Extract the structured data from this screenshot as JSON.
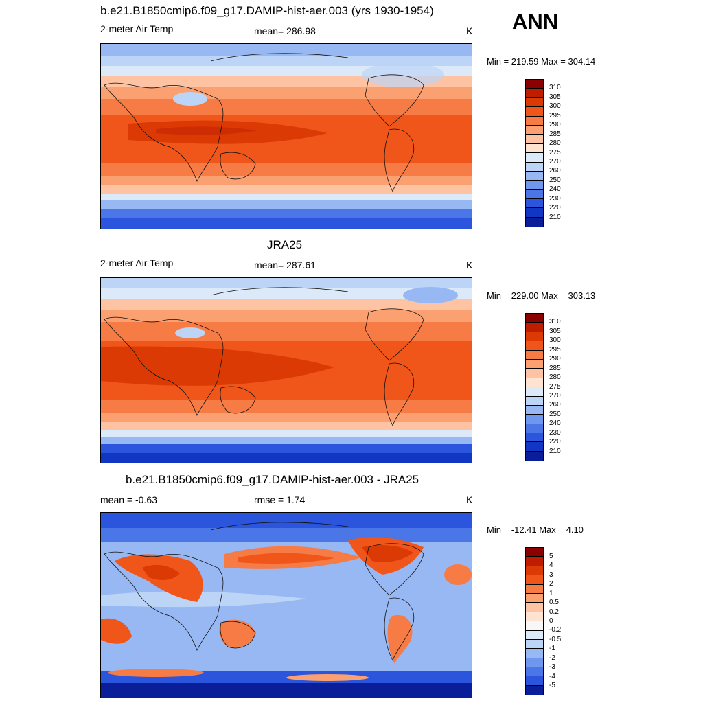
{
  "header": {
    "season": "ANN"
  },
  "panels": [
    {
      "title": "b.e21.B1850cmip6.f09_g17.DAMIP-hist-aer.003 (yrs 1930-1954)",
      "left_label": "2-meter Air Temp",
      "center_label": "mean= 286.98",
      "units": "K",
      "minmax": "Min = 219.59 Max = 304.14",
      "colorbar": {
        "colors": [
          "#8b0000",
          "#bf1d00",
          "#dc3a05",
          "#f0561a",
          "#f77b45",
          "#fba070",
          "#fdc3a2",
          "#fde3d0",
          "#dce9f8",
          "#bcd4f6",
          "#98b8f3",
          "#6f97ee",
          "#4b76e8",
          "#2a55dc",
          "#1236c4",
          "#0a1e99"
        ],
        "labels": [
          "310",
          "305",
          "300",
          "295",
          "290",
          "285",
          "280",
          "275",
          "270",
          "260",
          "250",
          "240",
          "230",
          "220",
          "210"
        ]
      }
    },
    {
      "title": "JRA25",
      "left_label": "2-meter Air Temp",
      "center_label": "mean= 287.61",
      "units": "K",
      "minmax": "Min = 229.00 Max = 303.13",
      "colorbar": {
        "colors": [
          "#8b0000",
          "#bf1d00",
          "#dc3a05",
          "#f0561a",
          "#f77b45",
          "#fba070",
          "#fdc3a2",
          "#fde3d0",
          "#dce9f8",
          "#bcd4f6",
          "#98b8f3",
          "#6f97ee",
          "#4b76e8",
          "#2a55dc",
          "#1236c4",
          "#0a1e99"
        ],
        "labels": [
          "310",
          "305",
          "300",
          "295",
          "290",
          "285",
          "280",
          "275",
          "270",
          "260",
          "250",
          "240",
          "230",
          "220",
          "210"
        ]
      }
    },
    {
      "title": "b.e21.B1850cmip6.f09_g17.DAMIP-hist-aer.003 - JRA25",
      "left_label": "mean =  -0.63",
      "center_label": "rmse =    1.74",
      "units": "K",
      "minmax": "Min = -12.41 Max =   4.10",
      "colorbar": {
        "colors": [
          "#8b0000",
          "#bf1d00",
          "#dc3a05",
          "#f0561a",
          "#f77b45",
          "#fba070",
          "#fdc3a2",
          "#fde3d0",
          "#f7f7f7",
          "#dce9f8",
          "#bcd4f6",
          "#98b8f3",
          "#6f97ee",
          "#4b76e8",
          "#2a55dc",
          "#1236c4",
          "#0a1e99"
        ],
        "labels": [
          "5",
          "4",
          "3",
          "2",
          "1",
          "0.5",
          "0.2",
          "0",
          "-0.2",
          "-0.5",
          "-1",
          "-2",
          "-3",
          "-4",
          "-5"
        ]
      }
    }
  ]
}
